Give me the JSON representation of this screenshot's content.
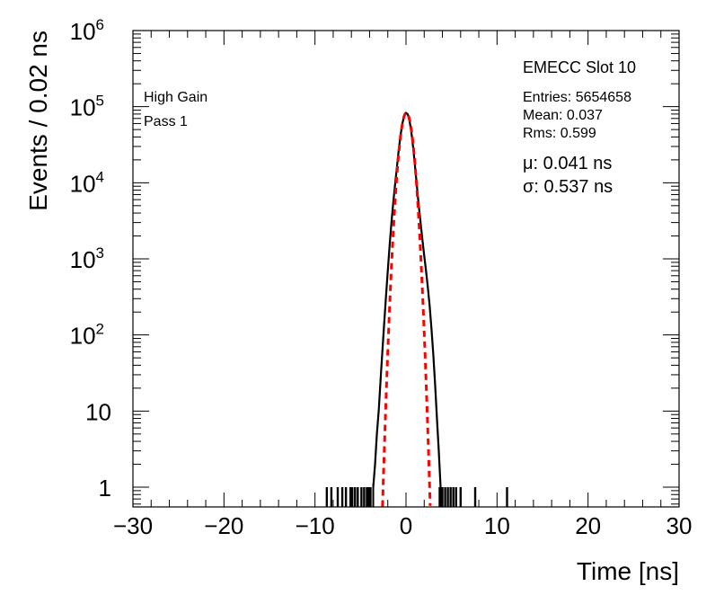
{
  "chart_data": {
    "type": "histogram",
    "xlabel": "Time [ns]",
    "ylabel": "Events / 0.02 ns",
    "xlim": [
      -30,
      30
    ],
    "ylim": [
      0.55,
      1000000
    ],
    "y_scale": "log",
    "grid": false,
    "x_ticks": [
      -30,
      -20,
      -10,
      0,
      10,
      20,
      30
    ],
    "x_tick_labels": [
      "−30",
      "−20",
      "−10",
      "0",
      "10",
      "20",
      "30"
    ],
    "y_ticks": [
      {
        "base": "1",
        "exp": ""
      },
      {
        "base": "10",
        "exp": ""
      },
      {
        "base": "10",
        "exp": "2"
      },
      {
        "base": "10",
        "exp": "3"
      },
      {
        "base": "10",
        "exp": "4"
      },
      {
        "base": "10",
        "exp": "5"
      },
      {
        "base": "10",
        "exp": "6"
      }
    ],
    "series": [
      {
        "kind": "histogram",
        "color": "#000000",
        "points": [
          [
            -3.6,
            1
          ],
          [
            -3.4,
            2
          ],
          [
            -3.2,
            5
          ],
          [
            -3.0,
            10
          ],
          [
            -2.8,
            25
          ],
          [
            -2.6,
            60
          ],
          [
            -2.4,
            140
          ],
          [
            -2.2,
            320
          ],
          [
            -2.0,
            700
          ],
          [
            -1.8,
            1500
          ],
          [
            -1.6,
            3000
          ],
          [
            -1.4,
            5500
          ],
          [
            -1.2,
            9500
          ],
          [
            -1.0,
            16000
          ],
          [
            -0.8,
            27000
          ],
          [
            -0.6,
            42000
          ],
          [
            -0.4,
            60000
          ],
          [
            -0.2,
            76000
          ],
          [
            0.0,
            83000
          ],
          [
            0.2,
            79000
          ],
          [
            0.4,
            64000
          ],
          [
            0.6,
            45000
          ],
          [
            0.8,
            28000
          ],
          [
            1.0,
            16000
          ],
          [
            1.2,
            9000
          ],
          [
            1.4,
            5000
          ],
          [
            1.6,
            3000
          ],
          [
            1.8,
            1800
          ],
          [
            2.0,
            1100
          ],
          [
            2.2,
            700
          ],
          [
            2.4,
            420
          ],
          [
            2.6,
            240
          ],
          [
            2.8,
            120
          ],
          [
            3.0,
            55
          ],
          [
            3.2,
            22
          ],
          [
            3.4,
            8
          ],
          [
            3.6,
            3
          ],
          [
            3.8,
            1
          ]
        ],
        "isolated_bins": [
          -8.7,
          -8.2,
          -7.5,
          -7.0,
          -6.6,
          -6.1,
          -5.9,
          -5.6,
          -5.3,
          -4.9,
          -4.6,
          -4.3,
          -4.1,
          -3.9,
          3.7,
          4.0,
          4.3,
          4.6,
          4.9,
          5.2,
          5.5,
          6.0,
          7.6,
          11.1
        ],
        "isolated_value": 1
      },
      {
        "kind": "fit",
        "style": "dashed",
        "color": "#ff0000",
        "mu": 0.041,
        "sigma": 0.537,
        "amplitude": 83000
      }
    ]
  },
  "annotations": {
    "left_line1": "High Gain",
    "left_line2": "Pass 1",
    "slot_title": "EMECC Slot 10",
    "entries": "Entries: 5654658",
    "mean": "Mean: 0.037",
    "rms": "Rms: 0.599",
    "mu": "μ: 0.041 ns",
    "sigma": "σ: 0.537 ns"
  }
}
